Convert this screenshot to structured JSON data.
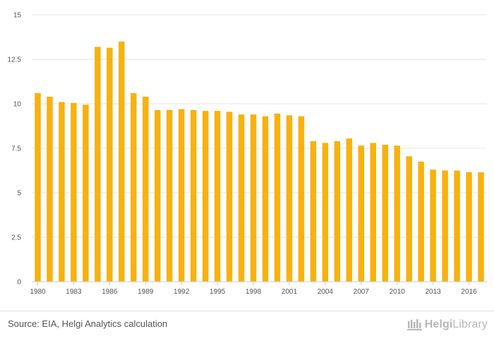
{
  "chart_data": {
    "type": "bar",
    "title": "",
    "xlabel": "",
    "ylabel": "",
    "ylim": [
      0,
      15
    ],
    "yticks": [
      "0",
      "2.5",
      "5",
      "7.5",
      "10",
      "12.5",
      "15"
    ],
    "grid": true,
    "bar_color": "#f7b20f",
    "categories": [
      "1980",
      "1981",
      "1982",
      "1983",
      "1984",
      "1985",
      "1986",
      "1987",
      "1988",
      "1989",
      "1990",
      "1991",
      "1992",
      "1993",
      "1994",
      "1995",
      "1996",
      "1997",
      "1998",
      "1999",
      "2000",
      "2001",
      "2002",
      "2003",
      "2004",
      "2005",
      "2006",
      "2007",
      "2008",
      "2009",
      "2010",
      "2011",
      "2012",
      "2013",
      "2014",
      "2015",
      "2016",
      "2017"
    ],
    "xtick_labels": [
      "1980",
      "1983",
      "1986",
      "1989",
      "1992",
      "1995",
      "1998",
      "2001",
      "2004",
      "2007",
      "2010",
      "2013",
      "2016"
    ],
    "values": [
      10.6,
      10.4,
      10.1,
      10.05,
      9.95,
      13.2,
      13.15,
      13.5,
      10.6,
      10.4,
      9.65,
      9.65,
      9.7,
      9.65,
      9.6,
      9.6,
      9.55,
      9.4,
      9.4,
      9.3,
      9.45,
      9.35,
      9.3,
      7.9,
      7.8,
      7.9,
      8.05,
      7.65,
      7.8,
      7.7,
      7.65,
      7.05,
      6.75,
      6.3,
      6.25,
      6.25,
      6.15,
      6.15
    ]
  },
  "footer": {
    "source": "Source: EIA, Helgi Analytics calculation",
    "logo_name": "Helgi",
    "logo_suffix": "Library",
    "logo_icon": "helgi-library-icon"
  }
}
